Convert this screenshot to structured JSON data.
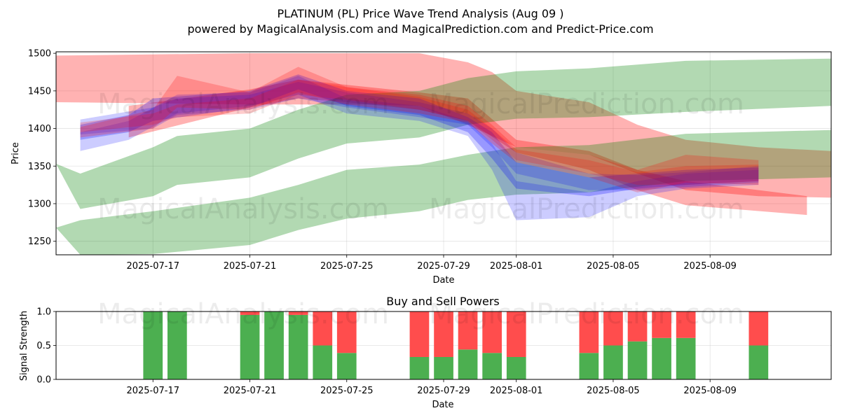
{
  "title": "PLATINUM (PL) Price Wave Trend Analysis (Aug 09 )",
  "subtitle": "powered by MagicalAnalysis.com and MagicalPrediction.com and Predict-Price.com",
  "watermarks": [
    "MagicalAnalysis.com",
    "MagicalPrediction.com"
  ],
  "chart_data": [
    {
      "type": "area",
      "title": "",
      "xlabel": "Date",
      "ylabel": "Price",
      "xlim": [
        "2025-07-13",
        "2025-08-14"
      ],
      "ylim": [
        1232,
        1502
      ],
      "x_ticks": [
        "2025-07-17",
        "2025-07-21",
        "2025-07-25",
        "2025-07-29",
        "2025-08-01",
        "2025-08-05",
        "2025-08-09"
      ],
      "y_ticks": [
        1250,
        1300,
        1350,
        1400,
        1450,
        1500
      ],
      "grid": true,
      "colors": {
        "red": "#ff0000",
        "green": "#008000",
        "blue": "#0000ff"
      },
      "bands": [
        {
          "color": "red",
          "opacity": 0.3,
          "points": [
            [
              "2025-07-13",
              1435,
              1497
            ],
            [
              "2025-07-21",
              1432,
              1500
            ],
            [
              "2025-07-26",
              1432,
              1500
            ],
            [
              "2025-07-28",
              1430,
              1500
            ],
            [
              "2025-07-30",
              1405,
              1488
            ],
            [
              "2025-07-31",
              1390,
              1475
            ],
            [
              "2025-08-01",
              1375,
              1450
            ],
            [
              "2025-08-04",
              1365,
              1435
            ],
            [
              "2025-08-06",
              1340,
              1405
            ],
            [
              "2025-08-08",
              1318,
              1385
            ],
            [
              "2025-08-11",
              1310,
              1375
            ],
            [
              "2025-08-14",
              1308,
              1370
            ]
          ]
        },
        {
          "color": "red",
          "opacity": 0.3,
          "points": [
            [
              "2025-07-16",
              1388,
              1430
            ],
            [
              "2025-07-21",
              1428,
              1452
            ],
            [
              "2025-07-23",
              1440,
              1465
            ],
            [
              "2025-07-25",
              1435,
              1458
            ],
            [
              "2025-07-28",
              1425,
              1448
            ],
            [
              "2025-07-30",
              1410,
              1440
            ],
            [
              "2025-08-01",
              1368,
              1385
            ],
            [
              "2025-08-04",
              1345,
              1370
            ],
            [
              "2025-08-06",
              1318,
              1345
            ],
            [
              "2025-08-08",
              1298,
              1330
            ],
            [
              "2025-08-13",
              1285,
              1310
            ]
          ]
        },
        {
          "color": "green",
          "opacity": 0.3,
          "points": [
            [
              "2025-07-13",
              1353,
              1353
            ],
            [
              "2025-07-14",
              1293,
              1340
            ],
            [
              "2025-07-17",
              1310,
              1375
            ],
            [
              "2025-07-18",
              1325,
              1390
            ],
            [
              "2025-07-21",
              1335,
              1400
            ],
            [
              "2025-07-23",
              1360,
              1425
            ],
            [
              "2025-07-25",
              1380,
              1445
            ],
            [
              "2025-07-28",
              1388,
              1450
            ],
            [
              "2025-07-30",
              1405,
              1467
            ],
            [
              "2025-08-01",
              1413,
              1476
            ],
            [
              "2025-08-04",
              1415,
              1480
            ],
            [
              "2025-08-08",
              1422,
              1490
            ],
            [
              "2025-08-14",
              1430,
              1493
            ]
          ]
        },
        {
          "color": "green",
          "opacity": 0.3,
          "points": [
            [
              "2025-07-13",
              1268,
              1268
            ],
            [
              "2025-07-14",
              1232,
              1278
            ],
            [
              "2025-07-17",
              1233,
              1290
            ],
            [
              "2025-07-21",
              1245,
              1308
            ],
            [
              "2025-07-23",
              1265,
              1325
            ],
            [
              "2025-07-25",
              1280,
              1345
            ],
            [
              "2025-07-28",
              1290,
              1352
            ],
            [
              "2025-07-30",
              1305,
              1365
            ],
            [
              "2025-08-01",
              1312,
              1375
            ],
            [
              "2025-08-04",
              1315,
              1378
            ],
            [
              "2025-08-08",
              1330,
              1393
            ],
            [
              "2025-08-14",
              1335,
              1398
            ]
          ]
        },
        {
          "color": "blue",
          "opacity": 0.25,
          "points": [
            [
              "2025-07-14",
              1385,
              1405
            ],
            [
              "2025-07-16",
              1395,
              1418
            ],
            [
              "2025-07-17",
              1410,
              1440
            ],
            [
              "2025-07-21",
              1428,
              1450
            ],
            [
              "2025-07-23",
              1452,
              1472
            ],
            [
              "2025-07-25",
              1430,
              1450
            ],
            [
              "2025-07-28",
              1418,
              1440
            ],
            [
              "2025-07-30",
              1395,
              1415
            ],
            [
              "2025-07-31",
              1360,
              1395
            ],
            [
              "2025-08-01",
              1320,
              1355
            ],
            [
              "2025-08-04",
              1310,
              1335
            ],
            [
              "2025-08-06",
              1320,
              1340
            ],
            [
              "2025-08-08",
              1325,
              1345
            ],
            [
              "2025-08-11",
              1330,
              1348
            ]
          ]
        },
        {
          "color": "blue",
          "opacity": 0.2,
          "points": [
            [
              "2025-07-14",
              1370,
              1395
            ],
            [
              "2025-07-16",
              1385,
              1410
            ],
            [
              "2025-07-18",
              1420,
              1445
            ],
            [
              "2025-07-21",
              1430,
              1448
            ],
            [
              "2025-07-23",
              1445,
              1470
            ],
            [
              "2025-07-25",
              1420,
              1440
            ],
            [
              "2025-07-28",
              1410,
              1430
            ],
            [
              "2025-07-30",
              1390,
              1410
            ],
            [
              "2025-07-31",
              1345,
              1380
            ],
            [
              "2025-08-01",
              1278,
              1330
            ],
            [
              "2025-08-04",
              1282,
              1315
            ],
            [
              "2025-08-06",
              1310,
              1330
            ],
            [
              "2025-08-08",
              1320,
              1340
            ],
            [
              "2025-08-11",
              1325,
              1345
            ]
          ]
        },
        {
          "color": "blue",
          "opacity": 0.2,
          "points": [
            [
              "2025-07-14",
              1392,
              1412
            ],
            [
              "2025-07-17",
              1400,
              1428
            ],
            [
              "2025-07-18",
              1418,
              1440
            ],
            [
              "2025-07-21",
              1425,
              1445
            ],
            [
              "2025-07-23",
              1440,
              1462
            ],
            [
              "2025-07-25",
              1428,
              1448
            ],
            [
              "2025-07-28",
              1415,
              1435
            ],
            [
              "2025-07-30",
              1405,
              1420
            ],
            [
              "2025-07-31",
              1375,
              1400
            ],
            [
              "2025-08-01",
              1340,
              1368
            ],
            [
              "2025-08-04",
              1318,
              1340
            ],
            [
              "2025-08-06",
              1318,
              1338
            ],
            [
              "2025-08-08",
              1322,
              1342
            ],
            [
              "2025-08-11",
              1328,
              1350
            ]
          ]
        },
        {
          "color": "red",
          "opacity": 0.22,
          "points": [
            [
              "2025-07-14",
              1388,
              1402
            ],
            [
              "2025-07-17",
              1400,
              1425
            ],
            [
              "2025-07-18",
              1428,
              1470
            ],
            [
              "2025-07-21",
              1425,
              1448
            ],
            [
              "2025-07-23",
              1448,
              1482
            ],
            [
              "2025-07-25",
              1432,
              1455
            ],
            [
              "2025-07-28",
              1420,
              1445
            ],
            [
              "2025-07-30",
              1408,
              1430
            ],
            [
              "2025-07-31",
              1380,
              1405
            ],
            [
              "2025-08-01",
              1355,
              1375
            ],
            [
              "2025-08-04",
              1335,
              1365
            ],
            [
              "2025-08-06",
              1315,
              1345
            ],
            [
              "2025-08-08",
              1328,
              1365
            ],
            [
              "2025-08-11",
              1325,
              1358
            ]
          ]
        },
        {
          "color": "red",
          "opacity": 0.2,
          "points": [
            [
              "2025-07-14",
              1395,
              1408
            ],
            [
              "2025-07-17",
              1405,
              1420
            ],
            [
              "2025-07-18",
              1415,
              1432
            ],
            [
              "2025-07-21",
              1420,
              1440
            ],
            [
              "2025-07-23",
              1445,
              1465
            ],
            [
              "2025-07-25",
              1438,
              1455
            ],
            [
              "2025-07-28",
              1425,
              1442
            ],
            [
              "2025-07-30",
              1410,
              1425
            ],
            [
              "2025-07-31",
              1385,
              1400
            ],
            [
              "2025-08-01",
              1358,
              1372
            ],
            [
              "2025-08-04",
              1340,
              1358
            ],
            [
              "2025-08-06",
              1325,
              1342
            ],
            [
              "2025-08-08",
              1325,
              1350
            ],
            [
              "2025-08-11",
              1330,
              1352
            ]
          ]
        }
      ]
    },
    {
      "type": "bar",
      "stacked": true,
      "title": "Buy and Sell Powers",
      "xlabel": "Date",
      "ylabel": "Signal Strength",
      "xlim": [
        "2025-07-13",
        "2025-08-14"
      ],
      "ylim": [
        0,
        1
      ],
      "x_ticks": [
        "2025-07-17",
        "2025-07-21",
        "2025-07-25",
        "2025-07-29",
        "2025-08-01",
        "2025-08-05",
        "2025-08-09"
      ],
      "y_ticks": [
        "0.0",
        "0.5",
        "1.0"
      ],
      "grid": true,
      "colors": {
        "buy": "#4caf50",
        "sell": "#ff4d4d"
      },
      "categories": [
        "2025-07-17",
        "2025-07-18",
        "2025-07-21",
        "2025-07-22",
        "2025-07-23",
        "2025-07-24",
        "2025-07-25",
        "2025-07-28",
        "2025-07-29",
        "2025-07-30",
        "2025-07-31",
        "2025-08-01",
        "2025-08-04",
        "2025-08-05",
        "2025-08-06",
        "2025-08-07",
        "2025-08-08",
        "2025-08-11"
      ],
      "series": [
        {
          "values": [
            1.0,
            1.0,
            0.95,
            1.0,
            0.95,
            0.5,
            0.39,
            0.33,
            0.33,
            0.44,
            0.39,
            0.33,
            0.39,
            0.5,
            0.56,
            0.61,
            0.61,
            0.5
          ]
        },
        {
          "values": [
            0.0,
            0.0,
            0.05,
            0.0,
            0.05,
            0.5,
            0.61,
            0.67,
            0.67,
            0.56,
            0.61,
            0.67,
            0.61,
            0.5,
            0.44,
            0.39,
            0.39,
            0.5
          ]
        }
      ]
    }
  ]
}
